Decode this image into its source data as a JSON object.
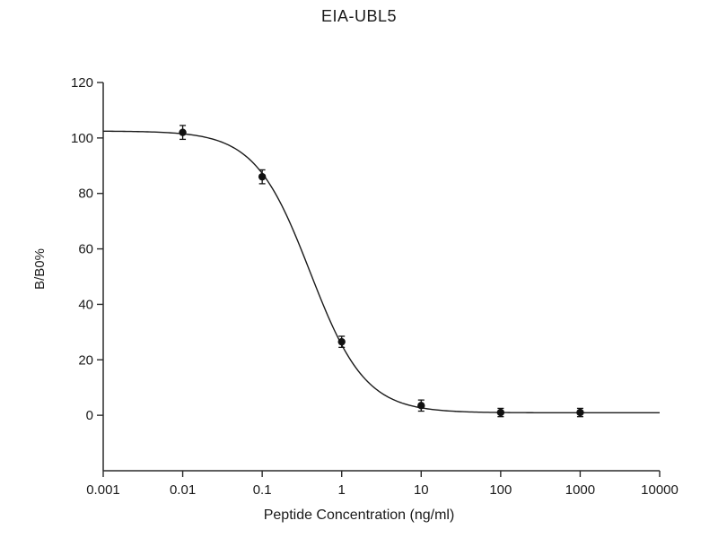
{
  "chart_data": {
    "type": "scatter",
    "title": "EIA-UBL5",
    "xlabel": "Peptide Concentration (ng/ml)",
    "ylabel": "B/B0%",
    "x_scale": "log",
    "xlim": [
      0.001,
      10000
    ],
    "ylim": [
      -20,
      120
    ],
    "x_ticks": [
      0.001,
      0.01,
      0.1,
      1,
      10,
      100,
      1000,
      10000
    ],
    "x_tick_labels": [
      "0.001",
      "0.01",
      "0.1",
      "1",
      "10",
      "100",
      "1000",
      "10000"
    ],
    "y_ticks": [
      0,
      20,
      40,
      60,
      80,
      100,
      120
    ],
    "y_tick_labels": [
      "0",
      "20",
      "40",
      "60",
      "80",
      "100",
      "120"
    ],
    "grid": false,
    "legend": "none",
    "points": {
      "x": [
        0.01,
        0.1,
        1,
        10,
        100,
        1000
      ],
      "y": [
        102,
        86,
        26.5,
        3.5,
        1,
        1
      ],
      "error": [
        2.5,
        2.5,
        2,
        2,
        1.5,
        1.5
      ]
    },
    "fit_curve": {
      "model": "4PL",
      "top": 102.5,
      "bottom": 0.9,
      "ic50": 0.4,
      "hill": 1.25
    },
    "colors": {
      "line": "#1a1a1a",
      "marker": "#111111",
      "axis": "#2a2a2a"
    }
  }
}
